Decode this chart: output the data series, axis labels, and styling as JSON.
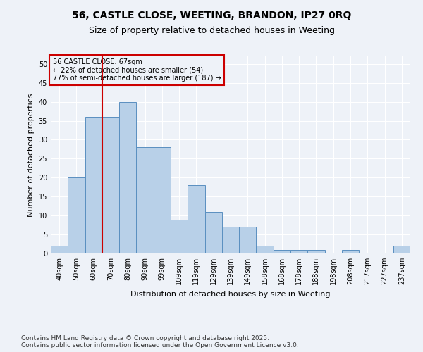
{
  "title": "56, CASTLE CLOSE, WEETING, BRANDON, IP27 0RQ",
  "subtitle": "Size of property relative to detached houses in Weeting",
  "xlabel": "Distribution of detached houses by size in Weeting",
  "ylabel": "Number of detached properties",
  "categories": [
    "40sqm",
    "50sqm",
    "60sqm",
    "70sqm",
    "80sqm",
    "90sqm",
    "99sqm",
    "109sqm",
    "119sqm",
    "129sqm",
    "139sqm",
    "149sqm",
    "158sqm",
    "168sqm",
    "178sqm",
    "188sqm",
    "198sqm",
    "208sqm",
    "217sqm",
    "227sqm",
    "237sqm"
  ],
  "values": [
    2,
    20,
    36,
    36,
    40,
    28,
    28,
    9,
    18,
    11,
    7,
    7,
    2,
    1,
    1,
    1,
    0,
    1,
    0,
    0,
    2
  ],
  "bar_color": "#b8d0e8",
  "bar_edge_color": "#5a8fc0",
  "red_line_x": 2.5,
  "annotation_title": "56 CASTLE CLOSE: 67sqm",
  "annotation_line1": "← 22% of detached houses are smaller (54)",
  "annotation_line2": "77% of semi-detached houses are larger (187) →",
  "annotation_box_color": "#cc0000",
  "ylim": [
    0,
    52
  ],
  "yticks": [
    0,
    5,
    10,
    15,
    20,
    25,
    30,
    35,
    40,
    45,
    50
  ],
  "footer_line1": "Contains HM Land Registry data © Crown copyright and database right 2025.",
  "footer_line2": "Contains public sector information licensed under the Open Government Licence v3.0.",
  "bg_color": "#eef2f8",
  "plot_bg_color": "#eef2f8",
  "grid_color": "#ffffff",
  "title_fontsize": 10,
  "subtitle_fontsize": 9,
  "axis_label_fontsize": 8,
  "tick_fontsize": 7,
  "annotation_fontsize": 7,
  "footer_fontsize": 6.5
}
